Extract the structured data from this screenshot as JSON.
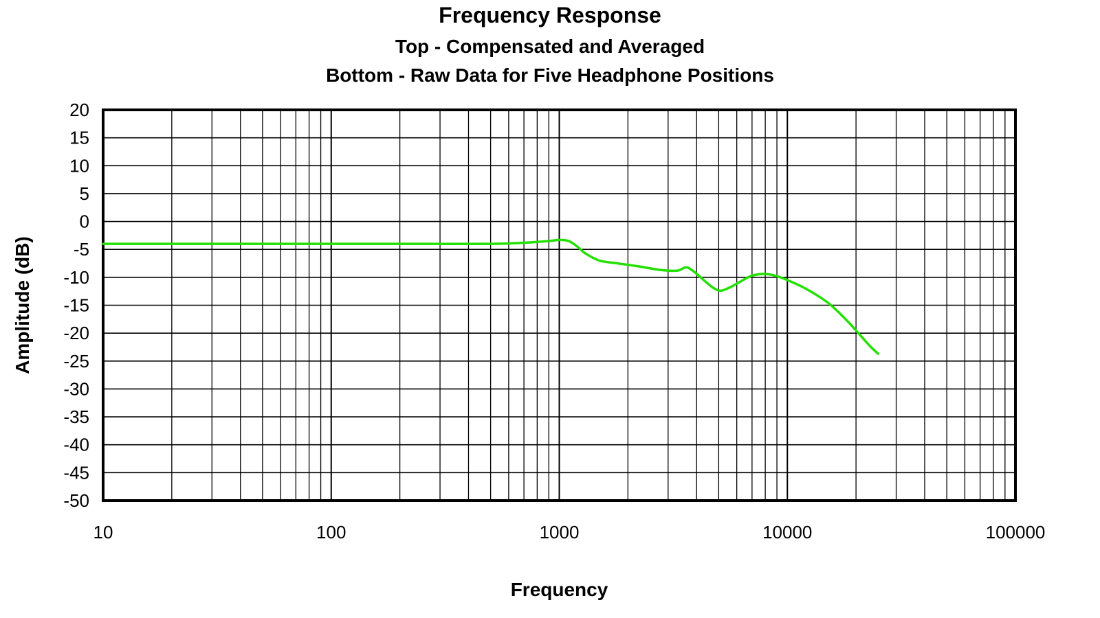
{
  "chart_data": {
    "type": "line",
    "title": "Frequency Response",
    "subtitle_lines": [
      "Top -  Compensated and Averaged",
      "Bottom - Raw Data for Five Headphone Positions"
    ],
    "xlabel": "Frequency",
    "ylabel": "Amplitude (dB)",
    "x_scale": "log",
    "xlim": [
      10,
      100000
    ],
    "ylim": [
      -50,
      20
    ],
    "x_ticks": [
      10,
      100,
      1000,
      10000,
      100000
    ],
    "x_tick_labels": [
      "10",
      "100",
      "1000",
      "10000",
      "100000"
    ],
    "y_ticks": [
      20,
      15,
      10,
      5,
      0,
      -5,
      -10,
      -15,
      -20,
      -25,
      -30,
      -35,
      -40,
      -45,
      -50
    ],
    "y_tick_labels": [
      "20",
      "15",
      "10",
      "5",
      "0",
      "-5",
      "-10",
      "-15",
      "-20",
      "-25",
      "-30",
      "-35",
      "-40",
      "-45",
      "-50"
    ],
    "grid": true,
    "series": [
      {
        "color": "#22e000",
        "x": [
          10,
          20,
          50,
          100,
          200,
          500,
          700,
          900,
          1000,
          1100,
          1200,
          1300,
          1500,
          1800,
          2200,
          2800,
          3300,
          3600,
          3900,
          4300,
          4700,
          5100,
          5600,
          6200,
          7000,
          8000,
          9000,
          10000,
          12000,
          15000,
          18000,
          21000,
          23000,
          25000
        ],
        "y": [
          -4,
          -4,
          -4,
          -4,
          -4,
          -4,
          -3.8,
          -3.5,
          -3.3,
          -3.5,
          -4.5,
          -5.7,
          -7,
          -7.5,
          -8,
          -8.7,
          -8.8,
          -8.2,
          -9,
          -10.5,
          -11.8,
          -12.4,
          -11.8,
          -10.8,
          -9.7,
          -9.4,
          -9.8,
          -10.5,
          -12,
          -14.5,
          -17.5,
          -20.5,
          -22.3,
          -23.7
        ]
      }
    ]
  }
}
